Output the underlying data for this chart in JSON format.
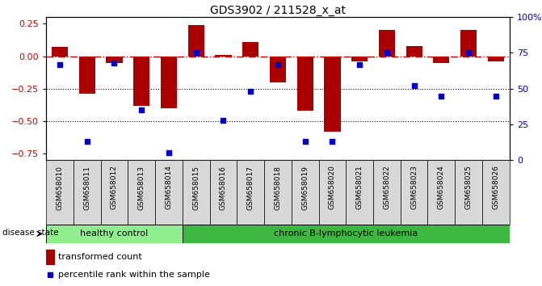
{
  "title": "GDS3902 / 211528_x_at",
  "samples": [
    "GSM658010",
    "GSM658011",
    "GSM658012",
    "GSM658013",
    "GSM658014",
    "GSM658015",
    "GSM658016",
    "GSM658017",
    "GSM658018",
    "GSM658019",
    "GSM658020",
    "GSM658021",
    "GSM658022",
    "GSM658023",
    "GSM658024",
    "GSM658025",
    "GSM658026"
  ],
  "bar_values": [
    0.07,
    -0.29,
    -0.05,
    -0.38,
    -0.4,
    0.24,
    0.01,
    0.11,
    -0.2,
    -0.42,
    -0.58,
    -0.04,
    0.2,
    0.08,
    -0.05,
    0.2,
    -0.04
  ],
  "percentile_values": [
    67,
    13,
    68,
    35,
    5,
    75,
    28,
    48,
    67,
    13,
    13,
    67,
    75,
    52,
    45,
    75,
    45
  ],
  "bar_color": "#AA0000",
  "dot_color": "#0000CC",
  "dashed_line_color": "#CC0000",
  "healthy_count": 5,
  "healthy_label": "healthy control",
  "disease_label": "chronic B-lymphocytic leukemia",
  "healthy_color": "#90EE90",
  "disease_color": "#3CB840",
  "ylim_left": [
    -0.8,
    0.3
  ],
  "ylim_right": [
    0,
    100
  ],
  "yticks_left": [
    -0.75,
    -0.5,
    -0.25,
    0,
    0.25
  ],
  "yticks_right": [
    0,
    25,
    50,
    75,
    100
  ],
  "hlines": [
    -0.25,
    -0.5
  ],
  "legend_bar_label": "transformed count",
  "legend_dot_label": "percentile rank within the sample",
  "disease_state_label": "disease state"
}
